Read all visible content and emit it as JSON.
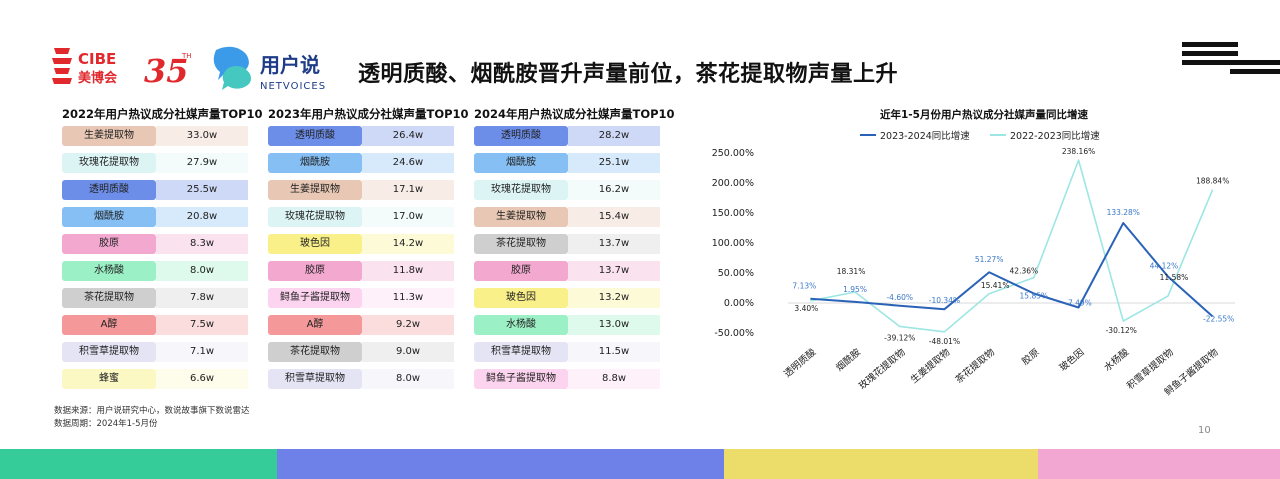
{
  "header": {
    "title": "透明质酸、烟酰胺晋升声量前位，茶花提取物声量上升",
    "logo_cibe": "CIBE",
    "logo_cibe_cn": "美博会",
    "logo_35": "35",
    "logo_35_tm": "TH",
    "logo_brand_cn": "用户说",
    "logo_brand_en": "NETVOICES"
  },
  "tables": [
    {
      "title": "2022年用户热议成分社媒声量TOP10",
      "rows": [
        {
          "label": "生姜提取物",
          "value": "33.0w",
          "color": "#e8c8b4"
        },
        {
          "label": "玫瑰花提取物",
          "value": "27.9w",
          "color": "#dcf4f4"
        },
        {
          "label": "透明质酸",
          "value": "25.5w",
          "color": "#6c8de8"
        },
        {
          "label": "烟酰胺",
          "value": "20.8w",
          "color": "#86bff4"
        },
        {
          "label": "胶原",
          "value": "8.3w",
          "color": "#f3a8d0"
        },
        {
          "label": "水杨酸",
          "value": "8.0w",
          "color": "#9cf0c6"
        },
        {
          "label": "茶花提取物",
          "value": "7.8w",
          "color": "#cfcfcf"
        },
        {
          "label": "A醇",
          "value": "7.5w",
          "color": "#f4989a"
        },
        {
          "label": "积雪草提取物",
          "value": "7.1w",
          "color": "#e4e4f4"
        },
        {
          "label": "蜂蜜",
          "value": "6.6w",
          "color": "#fbf8c4"
        }
      ]
    },
    {
      "title": "2023年用户热议成分社媒声量TOP10",
      "rows": [
        {
          "label": "透明质酸",
          "value": "26.4w",
          "color": "#6c8de8"
        },
        {
          "label": "烟酰胺",
          "value": "24.6w",
          "color": "#86bff4"
        },
        {
          "label": "生姜提取物",
          "value": "17.1w",
          "color": "#e8c8b4"
        },
        {
          "label": "玫瑰花提取物",
          "value": "17.0w",
          "color": "#dcf4f4"
        },
        {
          "label": "玻色因",
          "value": "14.2w",
          "color": "#faf08a"
        },
        {
          "label": "胶原",
          "value": "11.8w",
          "color": "#f3a8d0"
        },
        {
          "label": "鲟鱼子酱提取物",
          "value": "11.3w",
          "color": "#fcd4ef"
        },
        {
          "label": "A醇",
          "value": "9.2w",
          "color": "#f4989a"
        },
        {
          "label": "茶花提取物",
          "value": "9.0w",
          "color": "#cfcfcf"
        },
        {
          "label": "积雪草提取物",
          "value": "8.0w",
          "color": "#e4e4f4"
        }
      ]
    },
    {
      "title": "2024年用户热议成分社媒声量TOP10",
      "rows": [
        {
          "label": "透明质酸",
          "value": "28.2w",
          "color": "#6c8de8"
        },
        {
          "label": "烟酰胺",
          "value": "25.1w",
          "color": "#86bff4"
        },
        {
          "label": "玫瑰花提取物",
          "value": "16.2w",
          "color": "#dcf4f4"
        },
        {
          "label": "生姜提取物",
          "value": "15.4w",
          "color": "#e8c8b4"
        },
        {
          "label": "茶花提取物",
          "value": "13.7w",
          "color": "#cfcfcf"
        },
        {
          "label": "胶原",
          "value": "13.7w",
          "color": "#f3a8d0"
        },
        {
          "label": "玻色因",
          "value": "13.2w",
          "color": "#faf08a"
        },
        {
          "label": "水杨酸",
          "value": "13.0w",
          "color": "#9cf0c6"
        },
        {
          "label": "积雪草提取物",
          "value": "11.5w",
          "color": "#e4e4f4"
        },
        {
          "label": "鲟鱼子酱提取物",
          "value": "8.8w",
          "color": "#fcd4ef"
        }
      ]
    }
  ],
  "chart_data": {
    "type": "line",
    "title": "近年1-5月份用户热议成分社媒声量同比增速",
    "categories": [
      "透明质酸",
      "烟酰胺",
      "玫瑰花提取物",
      "生姜提取物",
      "茶花提取物",
      "胶原",
      "玻色因",
      "水杨酸",
      "积雪草提取物",
      "鲟鱼子酱提取物"
    ],
    "series": [
      {
        "name": "2023-2024同比增速",
        "color": "#2a62b8",
        "values": [
          7.13,
          1.95,
          -4.6,
          -10.34,
          51.27,
          15.85,
          -7.49,
          133.28,
          44.12,
          -22.55
        ],
        "labels": [
          "7.13%",
          "1.95%",
          "-4.60%",
          "-10.34%",
          "51.27%",
          "15.85%",
          "-7.49%",
          "133.28%",
          "44.12%",
          "-22.55%"
        ]
      },
      {
        "name": "2022-2023同比增速",
        "color": "#9ce6e4",
        "values": [
          3.4,
          18.31,
          -39.12,
          -48.01,
          15.41,
          42.36,
          238.16,
          -30.12,
          11.58,
          188.84
        ],
        "labels": [
          "3.40%",
          "18.31%",
          "-39.12%",
          "-48.01%",
          "15.41%",
          "42.36%",
          "238.16%",
          "-30.12%",
          "11.58%",
          "188.84%"
        ]
      }
    ],
    "yticks": [
      "250.00%",
      "200.00%",
      "150.00%",
      "100.00%",
      "50.00%",
      "0.00%",
      "-50.00%"
    ],
    "ytick_values": [
      250,
      200,
      150,
      100,
      50,
      0,
      -50
    ],
    "ylim": [
      -50,
      250
    ],
    "legend": "top",
    "grid": false
  },
  "footnote": {
    "source": "数据来源：用户说研究中心，数说故事旗下数说雷达",
    "period": "数据周期：2024年1-5月份"
  },
  "page_number": "10",
  "bottom_bar_colors": [
    "#35cc9a",
    "#6d81e8",
    "#ecdc6a",
    "#f2a6d2"
  ]
}
